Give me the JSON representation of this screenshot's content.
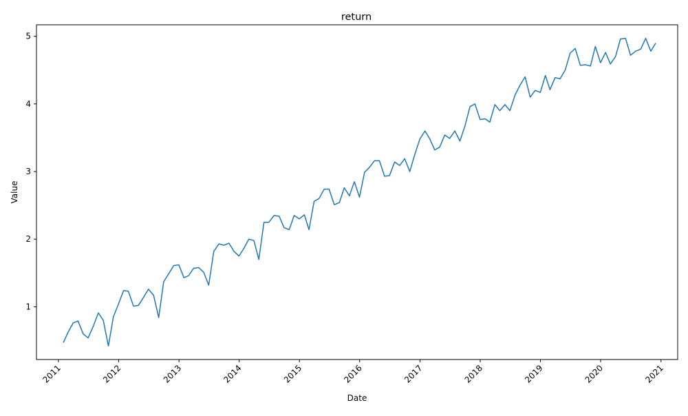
{
  "chart_data": {
    "type": "line",
    "title": "return",
    "xlabel": "Date",
    "ylabel": "Value",
    "x_ticks": [
      "2011",
      "2012",
      "2013",
      "2014",
      "2015",
      "2016",
      "2017",
      "2018",
      "2019",
      "2020",
      "2021"
    ],
    "y_ticks": [
      "1",
      "2",
      "3",
      "4",
      "5"
    ],
    "xlim": [
      "2010-08-21",
      "2021-04-12"
    ],
    "ylim": [
      0.22,
      5.17
    ],
    "grid": false,
    "colors": {
      "line": "#1f77b4",
      "axes": "#000000"
    },
    "series": [
      {
        "x": [
          "2011-01-31",
          "2011-02-28",
          "2011-03-31",
          "2011-04-30",
          "2011-05-31",
          "2011-06-30",
          "2011-07-31",
          "2011-08-31",
          "2011-09-30",
          "2011-10-31",
          "2011-11-30",
          "2011-12-31",
          "2012-01-31",
          "2012-02-29",
          "2012-03-31",
          "2012-04-30",
          "2012-05-31",
          "2012-06-30",
          "2012-07-31",
          "2012-08-31",
          "2012-09-30",
          "2012-10-31",
          "2012-11-30",
          "2012-12-31",
          "2013-01-31",
          "2013-02-28",
          "2013-03-31",
          "2013-04-30",
          "2013-05-31",
          "2013-06-30",
          "2013-07-31",
          "2013-08-31",
          "2013-09-30",
          "2013-10-31",
          "2013-11-30",
          "2013-12-31",
          "2014-01-31",
          "2014-02-28",
          "2014-03-31",
          "2014-04-30",
          "2014-05-31",
          "2014-06-30",
          "2014-07-31",
          "2014-08-31",
          "2014-09-30",
          "2014-10-31",
          "2014-11-30",
          "2014-12-31",
          "2015-01-31",
          "2015-02-28",
          "2015-03-31",
          "2015-04-30",
          "2015-05-31",
          "2015-06-30",
          "2015-07-31",
          "2015-08-31",
          "2015-09-30",
          "2015-10-31",
          "2015-11-30",
          "2015-12-31",
          "2016-01-31",
          "2016-02-29",
          "2016-03-31",
          "2016-04-30",
          "2016-05-31",
          "2016-06-30",
          "2016-07-31",
          "2016-08-31",
          "2016-09-30",
          "2016-10-31",
          "2016-11-30",
          "2016-12-31",
          "2017-01-31",
          "2017-02-28",
          "2017-03-31",
          "2017-04-30",
          "2017-05-31",
          "2017-06-30",
          "2017-07-31",
          "2017-08-31",
          "2017-09-30",
          "2017-10-31",
          "2017-11-30",
          "2017-12-31",
          "2018-01-31",
          "2018-02-28",
          "2018-03-31",
          "2018-04-30",
          "2018-05-31",
          "2018-06-30",
          "2018-07-31",
          "2018-08-31",
          "2018-09-30",
          "2018-10-31",
          "2018-11-30",
          "2018-12-31",
          "2019-01-31",
          "2019-02-28",
          "2019-03-31",
          "2019-04-30",
          "2019-05-31",
          "2019-06-30",
          "2019-07-31",
          "2019-08-31",
          "2019-09-30",
          "2019-10-31",
          "2019-11-30",
          "2019-12-31",
          "2020-01-31",
          "2020-02-29",
          "2020-03-31",
          "2020-04-30",
          "2020-05-31",
          "2020-06-30",
          "2020-07-31",
          "2020-08-31",
          "2020-09-30",
          "2020-10-31",
          "2020-11-30"
        ],
        "y": [
          0.47,
          0.62,
          0.76,
          0.79,
          0.6,
          0.54,
          0.71,
          0.91,
          0.8,
          0.42,
          0.85,
          1.04,
          1.24,
          1.23,
          1.01,
          1.02,
          1.14,
          1.26,
          1.17,
          0.84,
          1.37,
          1.49,
          1.61,
          1.62,
          1.43,
          1.46,
          1.57,
          1.58,
          1.51,
          1.32,
          1.82,
          1.93,
          1.91,
          1.94,
          1.82,
          1.75,
          1.87,
          2.0,
          1.98,
          1.7,
          2.25,
          2.25,
          2.35,
          2.34,
          2.17,
          2.14,
          2.35,
          2.3,
          2.36,
          2.14,
          2.56,
          2.6,
          2.74,
          2.74,
          2.51,
          2.54,
          2.76,
          2.64,
          2.85,
          2.62,
          2.99,
          3.06,
          3.16,
          3.16,
          2.93,
          2.94,
          3.14,
          3.09,
          3.19,
          3.0,
          3.25,
          3.48,
          3.6,
          3.49,
          3.32,
          3.36,
          3.54,
          3.49,
          3.6,
          3.45,
          3.67,
          3.96,
          4.0,
          3.77,
          3.78,
          3.73,
          3.99,
          3.9,
          3.99,
          3.9,
          4.13,
          4.28,
          4.4,
          4.1,
          4.2,
          4.17,
          4.42,
          4.21,
          4.39,
          4.37,
          4.5,
          4.75,
          4.82,
          4.57,
          4.58,
          4.56,
          4.85,
          4.61,
          4.76,
          4.59,
          4.7,
          4.96,
          4.97,
          4.72,
          4.78,
          4.81,
          4.97,
          4.78,
          4.9
        ]
      }
    ]
  }
}
